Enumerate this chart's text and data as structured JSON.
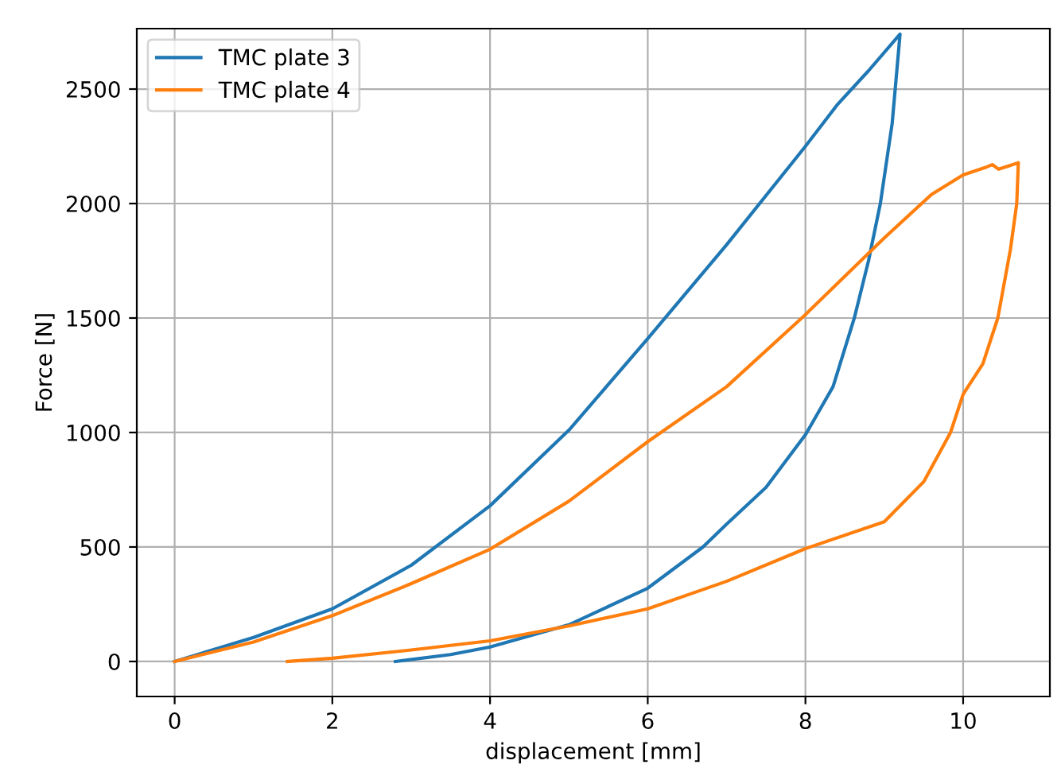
{
  "chart_data": {
    "type": "line",
    "xlabel": "displacement [mm]",
    "ylabel": "Force [N]",
    "xlim": [
      -0.48,
      11.1
    ],
    "ylim": [
      -153,
      2764
    ],
    "xticks": [
      0,
      2,
      4,
      6,
      8,
      10
    ],
    "yticks": [
      0,
      500,
      1000,
      1500,
      2000,
      2500
    ],
    "grid": true,
    "legend": "top left",
    "series": [
      {
        "name": "TMC plate 3",
        "color": "#1f77b4",
        "x": [
          0,
          1,
          2,
          3,
          4,
          5,
          6,
          7,
          8,
          8.4,
          8.8,
          9.2,
          9.1,
          8.95,
          8.8,
          8.62,
          8.35,
          8.0,
          7.5,
          7,
          6.7,
          6,
          5,
          4,
          3.5,
          2.8
        ],
        "values": [
          0,
          105,
          230,
          420,
          680,
          1010,
          1410,
          1820,
          2250,
          2430,
          2580,
          2740,
          2350,
          2000,
          1750,
          1500,
          1200,
          990,
          760,
          600,
          500,
          320,
          160,
          63,
          30,
          0
        ]
      },
      {
        "name": "TMC plate 4",
        "color": "#ff7f0e",
        "x": [
          0,
          1,
          2,
          3,
          4,
          5,
          6,
          7,
          8,
          9,
          9.6,
          10,
          10.3,
          10.37,
          10.45,
          10.7,
          10.68,
          10.6,
          10.44,
          10.25,
          10,
          9.84,
          9.5,
          9,
          8,
          7,
          6,
          5,
          4,
          3,
          2,
          1.43
        ],
        "values": [
          0,
          85,
          200,
          340,
          490,
          700,
          960,
          1200,
          1515,
          1850,
          2040,
          2125,
          2160,
          2170,
          2150,
          2178,
          2000,
          1800,
          1500,
          1300,
          1167,
          1000,
          785,
          610,
          493,
          350,
          230,
          155,
          90,
          50,
          14,
          0
        ]
      }
    ]
  }
}
